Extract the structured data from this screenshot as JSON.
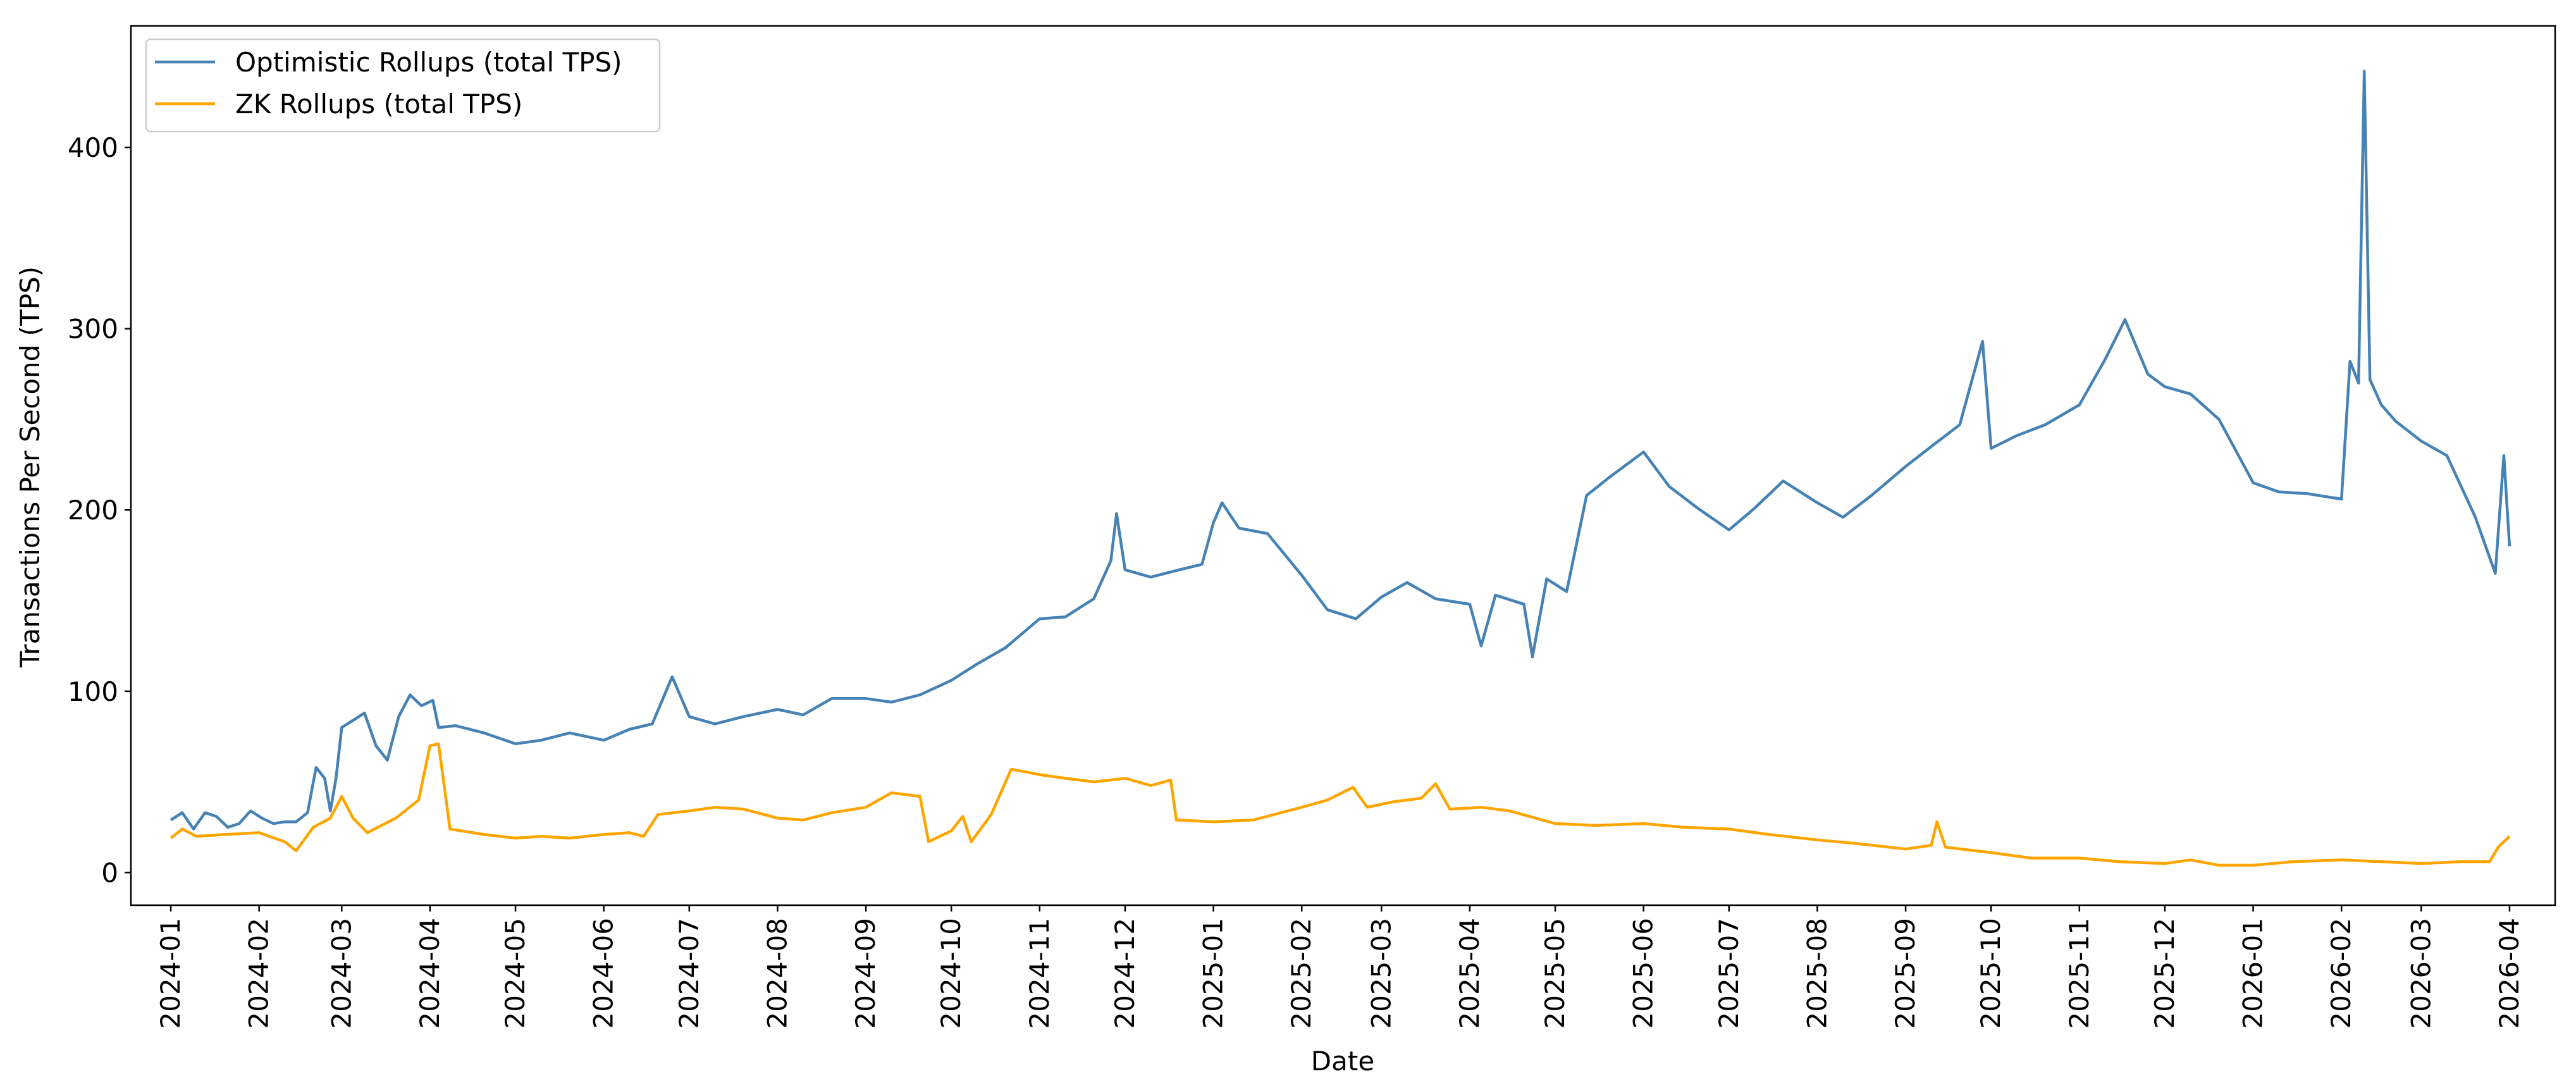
{
  "chart_data": {
    "type": "line",
    "xlabel": "Date",
    "ylabel": "Transactions Per Second (TPS)",
    "ylim": [
      -18,
      467
    ],
    "yticks": [
      0,
      100,
      200,
      300,
      400
    ],
    "x_range": [
      "2023-12-18",
      "2026-04-17"
    ],
    "x_ticks": [
      "2024-01",
      "2024-02",
      "2024-03",
      "2024-04",
      "2024-05",
      "2024-06",
      "2024-07",
      "2024-08",
      "2024-09",
      "2024-10",
      "2024-11",
      "2024-12",
      "2025-01",
      "2025-02",
      "2025-03",
      "2025-04",
      "2025-05",
      "2025-06",
      "2025-07",
      "2025-08",
      "2025-09",
      "2025-10",
      "2025-11",
      "2025-12",
      "2026-01",
      "2026-02",
      "2026-03",
      "2026-04"
    ],
    "grid": false,
    "legend_position": "top-left",
    "series": [
      {
        "name": "Optimistic Rollups (total TPS)",
        "color": "#4682b4",
        "points": [
          [
            "2024-01-01",
            29
          ],
          [
            "2024-01-05",
            33
          ],
          [
            "2024-01-09",
            24
          ],
          [
            "2024-01-13",
            33
          ],
          [
            "2024-01-17",
            31
          ],
          [
            "2024-01-21",
            25
          ],
          [
            "2024-01-25",
            27
          ],
          [
            "2024-01-29",
            34
          ],
          [
            "2024-02-02",
            30
          ],
          [
            "2024-02-06",
            27
          ],
          [
            "2024-02-10",
            28
          ],
          [
            "2024-02-14",
            28
          ],
          [
            "2024-02-18",
            33
          ],
          [
            "2024-02-21",
            58
          ],
          [
            "2024-02-24",
            52
          ],
          [
            "2024-02-26",
            34
          ],
          [
            "2024-02-28",
            52
          ],
          [
            "2024-03-01",
            80
          ],
          [
            "2024-03-05",
            84
          ],
          [
            "2024-03-09",
            88
          ],
          [
            "2024-03-13",
            70
          ],
          [
            "2024-03-17",
            62
          ],
          [
            "2024-03-21",
            86
          ],
          [
            "2024-03-25",
            98
          ],
          [
            "2024-03-29",
            92
          ],
          [
            "2024-04-02",
            95
          ],
          [
            "2024-04-04",
            80
          ],
          [
            "2024-04-10",
            81
          ],
          [
            "2024-04-20",
            77
          ],
          [
            "2024-05-01",
            71
          ],
          [
            "2024-05-10",
            73
          ],
          [
            "2024-05-20",
            77
          ],
          [
            "2024-06-01",
            73
          ],
          [
            "2024-06-10",
            79
          ],
          [
            "2024-06-18",
            82
          ],
          [
            "2024-06-25",
            108
          ],
          [
            "2024-07-01",
            86
          ],
          [
            "2024-07-10",
            82
          ],
          [
            "2024-07-20",
            86
          ],
          [
            "2024-08-01",
            90
          ],
          [
            "2024-08-10",
            87
          ],
          [
            "2024-08-20",
            96
          ],
          [
            "2024-09-01",
            96
          ],
          [
            "2024-09-10",
            94
          ],
          [
            "2024-09-20",
            98
          ],
          [
            "2024-10-01",
            106
          ],
          [
            "2024-10-10",
            115
          ],
          [
            "2024-10-20",
            124
          ],
          [
            "2024-11-01",
            140
          ],
          [
            "2024-11-10",
            141
          ],
          [
            "2024-11-20",
            151
          ],
          [
            "2024-11-26",
            172
          ],
          [
            "2024-11-28",
            198
          ],
          [
            "2024-12-01",
            167
          ],
          [
            "2024-12-10",
            163
          ],
          [
            "2024-12-20",
            167
          ],
          [
            "2024-12-28",
            170
          ],
          [
            "2025-01-01",
            193
          ],
          [
            "2025-01-04",
            204
          ],
          [
            "2025-01-10",
            190
          ],
          [
            "2025-01-20",
            187
          ],
          [
            "2025-02-01",
            164
          ],
          [
            "2025-02-10",
            145
          ],
          [
            "2025-02-20",
            140
          ],
          [
            "2025-03-01",
            152
          ],
          [
            "2025-03-10",
            160
          ],
          [
            "2025-03-20",
            151
          ],
          [
            "2025-04-01",
            148
          ],
          [
            "2025-04-05",
            125
          ],
          [
            "2025-04-10",
            153
          ],
          [
            "2025-04-20",
            148
          ],
          [
            "2025-04-23",
            119
          ],
          [
            "2025-04-28",
            162
          ],
          [
            "2025-05-05",
            155
          ],
          [
            "2025-05-12",
            208
          ],
          [
            "2025-05-20",
            218
          ],
          [
            "2025-06-01",
            232
          ],
          [
            "2025-06-10",
            213
          ],
          [
            "2025-06-20",
            201
          ],
          [
            "2025-07-01",
            189
          ],
          [
            "2025-07-10",
            201
          ],
          [
            "2025-07-20",
            216
          ],
          [
            "2025-08-01",
            204
          ],
          [
            "2025-08-10",
            196
          ],
          [
            "2025-08-20",
            208
          ],
          [
            "2025-09-01",
            224
          ],
          [
            "2025-09-10",
            235
          ],
          [
            "2025-09-20",
            247
          ],
          [
            "2025-09-28",
            293
          ],
          [
            "2025-10-01",
            234
          ],
          [
            "2025-10-10",
            241
          ],
          [
            "2025-10-20",
            247
          ],
          [
            "2025-11-01",
            258
          ],
          [
            "2025-11-10",
            283
          ],
          [
            "2025-11-17",
            305
          ],
          [
            "2025-11-25",
            275
          ],
          [
            "2025-12-01",
            268
          ],
          [
            "2025-12-10",
            264
          ],
          [
            "2025-12-20",
            250
          ],
          [
            "2026-01-01",
            215
          ],
          [
            "2026-01-10",
            210
          ],
          [
            "2026-01-20",
            209
          ],
          [
            "2026-02-01",
            206
          ],
          [
            "2026-02-04",
            282
          ],
          [
            "2026-02-07",
            270
          ],
          [
            "2026-02-09",
            442
          ],
          [
            "2026-02-11",
            272
          ],
          [
            "2026-02-15",
            258
          ],
          [
            "2026-02-20",
            249
          ],
          [
            "2026-03-01",
            238
          ],
          [
            "2026-03-10",
            230
          ],
          [
            "2026-03-20",
            196
          ],
          [
            "2026-03-27",
            165
          ],
          [
            "2026-03-30",
            230
          ],
          [
            "2026-04-01",
            180
          ]
        ]
      },
      {
        "name": "ZK Rollups (total TPS)",
        "color": "#ffa500",
        "points": [
          [
            "2024-01-01",
            19
          ],
          [
            "2024-01-05",
            24
          ],
          [
            "2024-01-10",
            20
          ],
          [
            "2024-01-20",
            21
          ],
          [
            "2024-02-01",
            22
          ],
          [
            "2024-02-10",
            17
          ],
          [
            "2024-02-14",
            12
          ],
          [
            "2024-02-20",
            25
          ],
          [
            "2024-02-26",
            30
          ],
          [
            "2024-03-01",
            42
          ],
          [
            "2024-03-05",
            30
          ],
          [
            "2024-03-10",
            22
          ],
          [
            "2024-03-20",
            30
          ],
          [
            "2024-03-28",
            40
          ],
          [
            "2024-04-01",
            70
          ],
          [
            "2024-04-04",
            71
          ],
          [
            "2024-04-08",
            24
          ],
          [
            "2024-04-20",
            21
          ],
          [
            "2024-05-01",
            19
          ],
          [
            "2024-05-10",
            20
          ],
          [
            "2024-05-20",
            19
          ],
          [
            "2024-06-01",
            21
          ],
          [
            "2024-06-10",
            22
          ],
          [
            "2024-06-15",
            20
          ],
          [
            "2024-06-20",
            32
          ],
          [
            "2024-07-01",
            34
          ],
          [
            "2024-07-10",
            36
          ],
          [
            "2024-07-20",
            35
          ],
          [
            "2024-08-01",
            30
          ],
          [
            "2024-08-10",
            29
          ],
          [
            "2024-08-20",
            33
          ],
          [
            "2024-09-01",
            36
          ],
          [
            "2024-09-10",
            44
          ],
          [
            "2024-09-20",
            42
          ],
          [
            "2024-09-23",
            17
          ],
          [
            "2024-10-01",
            23
          ],
          [
            "2024-10-05",
            31
          ],
          [
            "2024-10-08",
            17
          ],
          [
            "2024-10-15",
            32
          ],
          [
            "2024-10-22",
            57
          ],
          [
            "2024-11-01",
            54
          ],
          [
            "2024-11-10",
            52
          ],
          [
            "2024-11-20",
            50
          ],
          [
            "2024-12-01",
            52
          ],
          [
            "2024-12-10",
            48
          ],
          [
            "2024-12-17",
            51
          ],
          [
            "2024-12-19",
            29
          ],
          [
            "2025-01-01",
            28
          ],
          [
            "2025-01-15",
            29
          ],
          [
            "2025-02-01",
            36
          ],
          [
            "2025-02-10",
            40
          ],
          [
            "2025-02-19",
            47
          ],
          [
            "2025-02-24",
            36
          ],
          [
            "2025-03-05",
            39
          ],
          [
            "2025-03-15",
            41
          ],
          [
            "2025-03-20",
            49
          ],
          [
            "2025-03-25",
            35
          ],
          [
            "2025-04-05",
            36
          ],
          [
            "2025-04-15",
            34
          ],
          [
            "2025-05-01",
            27
          ],
          [
            "2025-05-15",
            26
          ],
          [
            "2025-06-01",
            27
          ],
          [
            "2025-06-15",
            25
          ],
          [
            "2025-07-01",
            24
          ],
          [
            "2025-07-15",
            21
          ],
          [
            "2025-08-01",
            18
          ],
          [
            "2025-08-15",
            16
          ],
          [
            "2025-09-01",
            13
          ],
          [
            "2025-09-10",
            15
          ],
          [
            "2025-09-12",
            28
          ],
          [
            "2025-09-15",
            14
          ],
          [
            "2025-10-01",
            11
          ],
          [
            "2025-10-15",
            8
          ],
          [
            "2025-11-01",
            8
          ],
          [
            "2025-11-15",
            6
          ],
          [
            "2025-12-01",
            5
          ],
          [
            "2025-12-10",
            7
          ],
          [
            "2025-12-20",
            4
          ],
          [
            "2026-01-01",
            4
          ],
          [
            "2026-01-15",
            6
          ],
          [
            "2026-02-01",
            7
          ],
          [
            "2026-02-15",
            6
          ],
          [
            "2026-03-01",
            5
          ],
          [
            "2026-03-15",
            6
          ],
          [
            "2026-03-25",
            6
          ],
          [
            "2026-03-28",
            14
          ],
          [
            "2026-04-01",
            20
          ]
        ]
      }
    ]
  }
}
